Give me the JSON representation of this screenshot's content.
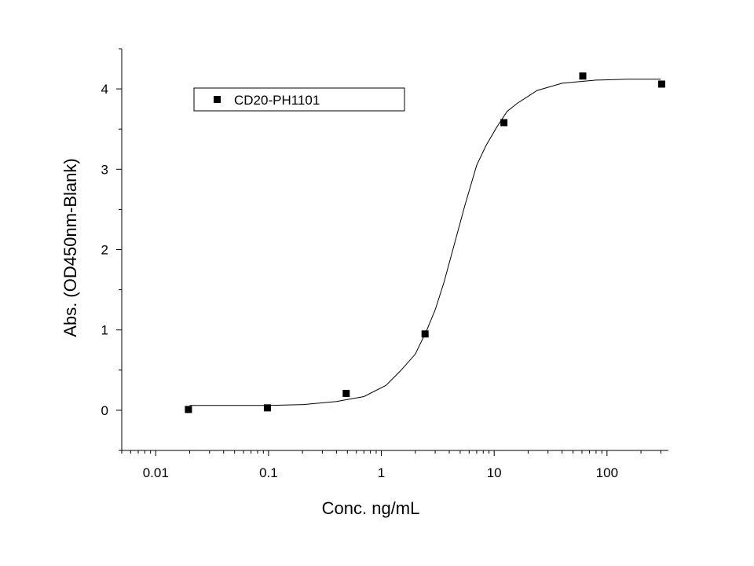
{
  "chart_data": {
    "type": "scatter",
    "xscale": "log",
    "xlim": [
      0.005,
      350
    ],
    "ylim": [
      -0.5,
      4.5
    ],
    "xlabel": "Conc. ng/mL",
    "ylabel": "Abs. (OD450nm-Blank)",
    "xticks": [
      0.01,
      0.1,
      1,
      10,
      100
    ],
    "xtick_labels": [
      "0.01",
      "0.1",
      "1",
      "10",
      "100"
    ],
    "yticks": [
      0,
      1,
      2,
      3,
      4
    ],
    "ytick_labels": [
      "0",
      "1",
      "2",
      "3",
      "4"
    ],
    "grid": false,
    "legend_position": "top-left",
    "series": [
      {
        "name": "CD20-PH1101",
        "marker": "square",
        "color": "#000000",
        "x": [
          0.0195,
          0.0977,
          0.488,
          2.44,
          12.2,
          61.0,
          305.0
        ],
        "y": [
          0.01,
          0.03,
          0.21,
          0.95,
          3.58,
          4.16,
          4.06
        ]
      }
    ],
    "fit_curve": {
      "color": "#000000",
      "x": [
        0.02,
        0.05,
        0.1,
        0.2,
        0.4,
        0.7,
        1.1,
        1.5,
        2.0,
        2.5,
        3.0,
        3.6,
        4.5,
        5.5,
        7.0,
        8.5,
        10.5,
        13.0,
        16.0,
        24.0,
        40.0,
        80.0,
        150.0,
        300.0
      ],
      "y": [
        0.06,
        0.06,
        0.06,
        0.07,
        0.11,
        0.17,
        0.31,
        0.5,
        0.7,
        0.98,
        1.25,
        1.6,
        2.1,
        2.55,
        3.05,
        3.3,
        3.52,
        3.72,
        3.82,
        3.98,
        4.07,
        4.11,
        4.12,
        4.12
      ]
    }
  }
}
